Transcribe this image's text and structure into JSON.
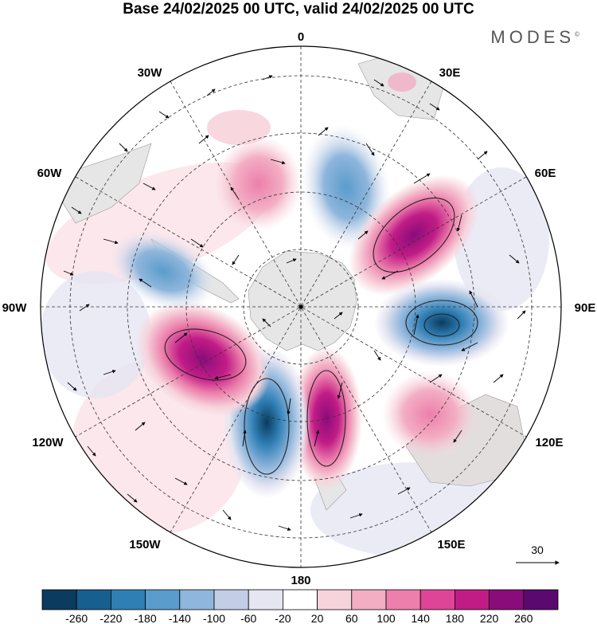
{
  "title": "Base 24/02/2025 00 UTC, valid 24/02/2025 00 UTC",
  "brand": "MODES",
  "brand_mark": "©",
  "longitude_labels": {
    "top": "0",
    "top_right": "30E",
    "right_upper": "60E",
    "right": "90E",
    "right_lower": "120E",
    "bottom_right": "150E",
    "bottom": "180",
    "bottom_left": "150W",
    "left_lower": "120W",
    "left": "90W",
    "left_upper": "60W",
    "top_left": "30W"
  },
  "vector_reference": "30",
  "colorbar": {
    "ticks": [
      "-260",
      "-220",
      "-180",
      "-140",
      "-100",
      "-60",
      "-20",
      "20",
      "60",
      "100",
      "140",
      "180",
      "220",
      "260"
    ],
    "colors": [
      "#0b3b5e",
      "#175f8f",
      "#2f7fb5",
      "#5a9ccc",
      "#8fb6dc",
      "#c3cde6",
      "#e6e6f2",
      "#ffffff",
      "#f7d3dc",
      "#f3aec4",
      "#ec7fab",
      "#df4596",
      "#c11c86",
      "#8a0c7a",
      "#5a0a6e"
    ]
  },
  "map": {
    "projection": "polar stereographic, south pole centred",
    "field": "geopotential height anomaly with wind vectors",
    "land_color": "#e6e6e6",
    "anomaly_centres": [
      {
        "lon_dir": "0 to 30E",
        "sign": "negative",
        "level": -140
      },
      {
        "lon_dir": "60E",
        "sign": "positive",
        "level": 220
      },
      {
        "lon_dir": "90E",
        "sign": "negative",
        "level": -220
      },
      {
        "lon_dir": "120E",
        "sign": "positive",
        "level": 60
      },
      {
        "lon_dir": "180",
        "sign": "positive",
        "level": 260
      },
      {
        "lon_dir": "150W",
        "sign": "negative",
        "level": -220
      },
      {
        "lon_dir": "110W",
        "sign": "positive",
        "level": 220
      },
      {
        "lon_dir": "75W",
        "sign": "negative",
        "level": -100
      },
      {
        "lon_dir": "30W",
        "sign": "positive",
        "level": 100
      }
    ]
  }
}
